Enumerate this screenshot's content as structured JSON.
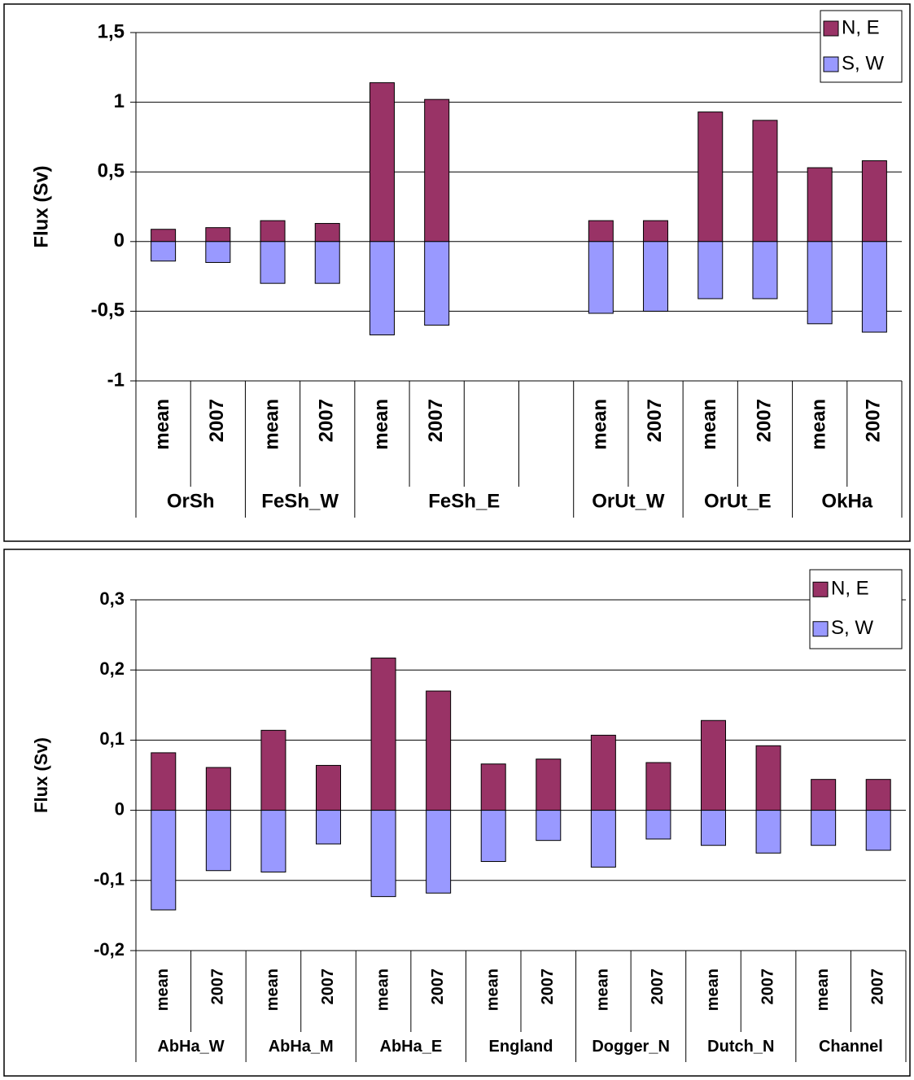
{
  "chart_data": [
    {
      "type": "bar",
      "y_label": "Flux (Sv)",
      "categories": [
        "mean",
        "2007",
        "mean",
        "2007",
        "mean",
        "2007",
        null,
        null,
        "mean",
        "2007",
        "mean",
        "2007",
        "mean",
        "2007"
      ],
      "category_groups": [
        "OrSh",
        "OrSh",
        "FeSh_W",
        "FeSh_W",
        "FeSh_E",
        "FeSh_E",
        "FeSh_E",
        "FeSh_E",
        "OrUt_W",
        "OrUt_W",
        "OrUt_E",
        "OrUt_E",
        "OkHa",
        "OkHa"
      ],
      "series": [
        {
          "name": "N, E",
          "color": "#993366",
          "values": [
            0.088,
            0.1,
            0.15,
            0.13,
            1.14,
            1.02,
            null,
            null,
            0.15,
            0.15,
            0.93,
            0.87,
            0.53,
            0.58
          ]
        },
        {
          "name": "S, W",
          "color": "#9999ff",
          "values": [
            -0.14,
            -0.15,
            -0.3,
            -0.3,
            -0.67,
            -0.6,
            null,
            null,
            -0.515,
            -0.5,
            -0.41,
            -0.41,
            -0.59,
            -0.65
          ]
        }
      ],
      "ylim": [
        -1,
        1.5
      ],
      "yticks": [
        -1,
        {
          "value": -0.5,
          "label": "-0,5"
        },
        0,
        {
          "value": 0.5,
          "label": "0,5"
        },
        1,
        {
          "value": 1.5,
          "label": "1,5"
        }
      ],
      "grid": true,
      "stacked": true,
      "legend": "top-right"
    },
    {
      "type": "bar",
      "y_label": "Flux (Sv)",
      "categories": [
        "mean",
        "2007",
        "mean",
        "2007",
        "mean",
        "2007",
        "mean",
        "2007",
        "mean",
        "2007",
        "mean",
        "2007",
        "mean",
        "2007"
      ],
      "category_groups": [
        "AbHa_W",
        "AbHa_W",
        "AbHa_M",
        "AbHa_M",
        "AbHa_E",
        "AbHa_E",
        "England",
        "England",
        "Dogger_N",
        "Dogger_N",
        "Dutch_N",
        "Dutch_N",
        "Channel",
        "Channel"
      ],
      "series": [
        {
          "name": "N, E",
          "color": "#993366",
          "values": [
            0.082,
            0.061,
            0.114,
            0.064,
            0.217,
            0.17,
            0.066,
            0.073,
            0.107,
            0.068,
            0.128,
            0.092,
            0.044,
            0.044
          ]
        },
        {
          "name": "S, W",
          "color": "#9999ff",
          "values": [
            -0.142,
            -0.086,
            -0.088,
            -0.048,
            -0.123,
            -0.118,
            -0.073,
            -0.043,
            -0.081,
            -0.041,
            -0.05,
            -0.061,
            -0.05,
            -0.057
          ]
        }
      ],
      "ylim": [
        -0.2,
        0.3
      ],
      "yticks": [
        {
          "value": -0.2,
          "label": "-0,2"
        },
        {
          "value": -0.1,
          "label": "-0,1"
        },
        0,
        {
          "value": 0.1,
          "label": "0,1"
        },
        {
          "value": 0.2,
          "label": "0,2"
        },
        {
          "value": 0.3,
          "label": "0,3"
        }
      ],
      "grid": true,
      "stacked": true,
      "legend": "top-right"
    }
  ]
}
